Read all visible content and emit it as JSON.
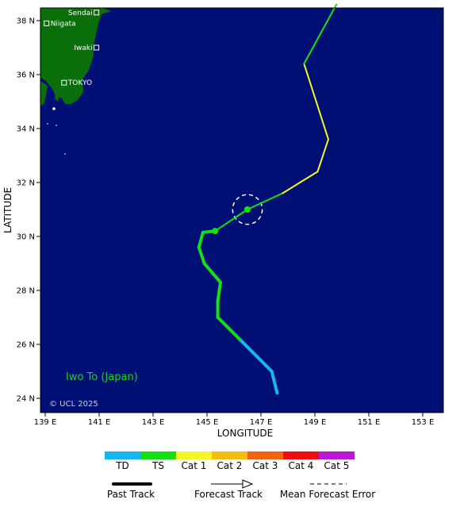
{
  "map": {
    "x_axis": {
      "title": "LONGITUDE",
      "ticks": [
        {
          "value": 139,
          "label": "139 E"
        },
        {
          "value": 141,
          "label": "141 E"
        },
        {
          "value": 143,
          "label": "143 E"
        },
        {
          "value": 145,
          "label": "145 E"
        },
        {
          "value": 147,
          "label": "147 E"
        },
        {
          "value": 149,
          "label": "149 E"
        },
        {
          "value": 151,
          "label": "151 E"
        },
        {
          "value": 153,
          "label": "153 E"
        }
      ]
    },
    "y_axis": {
      "title": "LATITUDE",
      "ticks": [
        {
          "value": 24,
          "label": "24 N"
        },
        {
          "value": 26,
          "label": "26 N"
        },
        {
          "value": 28,
          "label": "28 N"
        },
        {
          "value": 30,
          "label": "30 N"
        },
        {
          "value": 32,
          "label": "32 N"
        },
        {
          "value": 34,
          "label": "34 N"
        },
        {
          "value": 36,
          "label": "36 N"
        },
        {
          "value": 38,
          "label": "38 N"
        }
      ]
    },
    "cities": [
      {
        "name": "Sendai",
        "lon": 140.9,
        "lat": 38.3,
        "label_side": "left"
      },
      {
        "name": "Niigata",
        "lon": 139.05,
        "lat": 37.9,
        "label_side": "right"
      },
      {
        "name": "Iwaki",
        "lon": 140.9,
        "lat": 37.0,
        "label_side": "left"
      },
      {
        "name": "TOKYO",
        "lon": 139.7,
        "lat": 35.7,
        "label_side": "right"
      }
    ],
    "place_label": "Iwo To (Japan)",
    "copyright": "© UCL 2025",
    "colors": {
      "ocean": "#000f73",
      "land": "#0a6e0a",
      "TD": "#18b6ee",
      "TS": "#15e015",
      "Cat 1": "#f5f52a",
      "Cat 2": "#f5bc14",
      "Cat 3": "#f26410",
      "Cat 4": "#ee0d0d",
      "Cat 5": "#b819d2"
    },
    "past_track": [
      {
        "lon": 147.6,
        "lat": 24.2,
        "cat": "TD"
      },
      {
        "lon": 147.4,
        "lat": 25.0,
        "cat": "TD"
      },
      {
        "lon": 146.7,
        "lat": 25.7,
        "cat": "TD"
      },
      {
        "lon": 146.2,
        "lat": 26.2,
        "cat": "TS"
      },
      {
        "lon": 145.4,
        "lat": 27.0,
        "cat": "TS"
      },
      {
        "lon": 145.4,
        "lat": 27.6,
        "cat": "TS"
      },
      {
        "lon": 145.5,
        "lat": 28.3,
        "cat": "TS"
      },
      {
        "lon": 144.9,
        "lat": 29.0,
        "cat": "TS"
      },
      {
        "lon": 144.7,
        "lat": 29.6,
        "cat": "TS"
      },
      {
        "lon": 144.85,
        "lat": 30.15,
        "cat": "TS"
      },
      {
        "lon": 145.3,
        "lat": 30.2,
        "cat": "TS"
      }
    ],
    "forecast_track": [
      {
        "lon": 145.3,
        "lat": 30.2,
        "cat": "TS"
      },
      {
        "lon": 146.5,
        "lat": 31.0,
        "cat": "TS"
      },
      {
        "lon": 147.8,
        "lat": 31.6,
        "cat": "Cat 1"
      },
      {
        "lon": 149.1,
        "lat": 32.4,
        "cat": "Cat 1"
      },
      {
        "lon": 149.5,
        "lat": 33.6,
        "cat": "Cat 1"
      },
      {
        "lon": 148.6,
        "lat": 36.4,
        "cat": "TS"
      },
      {
        "lon": 149.8,
        "lat": 38.6,
        "cat": "TS"
      }
    ],
    "position_markers": [
      {
        "lon": 145.3,
        "lat": 30.2
      },
      {
        "lon": 146.5,
        "lat": 31.0
      }
    ],
    "forecast_error_circles": [
      {
        "lon": 146.5,
        "lat": 31.0,
        "radius_deg": 0.55
      }
    ]
  },
  "legend": {
    "categories": [
      "TD",
      "TS",
      "Cat 1",
      "Cat 2",
      "Cat 3",
      "Cat 4",
      "Cat 5"
    ],
    "past_track_label": "Past Track",
    "forecast_track_label": "Forecast Track",
    "error_label": "Mean Forecast Error"
  }
}
